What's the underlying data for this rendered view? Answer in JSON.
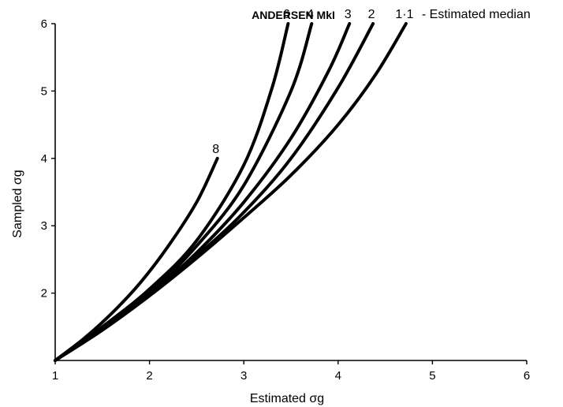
{
  "chart_data": {
    "type": "line",
    "title": "ANDERSEN MkI",
    "xlabel": "Estimated σg",
    "ylabel": "Sampled σg",
    "xlim": [
      1,
      6
    ],
    "ylim": [
      1,
      6
    ],
    "x_ticks": [
      "1",
      "2",
      "3",
      "4",
      "5",
      "6"
    ],
    "y_ticks": [
      "2",
      "3",
      "4",
      "5",
      "6"
    ],
    "grid": false,
    "legend_note": "- Estimated median",
    "series": [
      {
        "name": "8",
        "x": [
          1.0,
          1.3,
          1.6,
          1.9,
          2.2,
          2.5,
          2.72
        ],
        "y": [
          1.0,
          1.32,
          1.7,
          2.15,
          2.7,
          3.35,
          4.0
        ]
      },
      {
        "name": "6",
        "x": [
          1.0,
          1.5,
          2.0,
          2.5,
          3.0,
          3.3,
          3.47
        ],
        "y": [
          1.0,
          1.5,
          2.06,
          2.78,
          3.9,
          5.05,
          6.0
        ]
      },
      {
        "name": "4",
        "x": [
          1.0,
          1.5,
          2.0,
          2.5,
          3.0,
          3.5,
          3.72
        ],
        "y": [
          1.0,
          1.48,
          2.0,
          2.7,
          3.6,
          5.0,
          6.0
        ]
      },
      {
        "name": "3",
        "x": [
          1.0,
          1.5,
          2.0,
          2.5,
          3.0,
          3.5,
          3.9,
          4.12
        ],
        "y": [
          1.0,
          1.47,
          1.98,
          2.6,
          3.35,
          4.3,
          5.3,
          6.0
        ]
      },
      {
        "name": "2",
        "x": [
          1.0,
          1.5,
          2.0,
          2.5,
          3.0,
          3.5,
          4.0,
          4.37
        ],
        "y": [
          1.0,
          1.46,
          1.97,
          2.55,
          3.2,
          4.0,
          5.05,
          6.0
        ]
      },
      {
        "name": "1·1",
        "x": [
          1.0,
          1.5,
          2.0,
          2.5,
          3.0,
          3.5,
          4.0,
          4.4,
          4.72
        ],
        "y": [
          1.0,
          1.45,
          1.96,
          2.52,
          3.12,
          3.75,
          4.5,
          5.25,
          6.0
        ]
      }
    ]
  }
}
